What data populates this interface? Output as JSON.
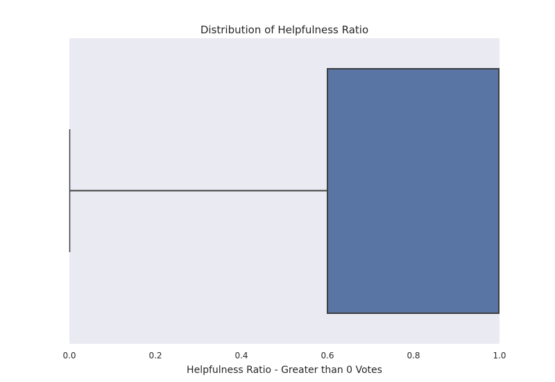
{
  "chart_data": {
    "type": "box",
    "orientation": "horizontal",
    "title": "Distribution of Helpfulness Ratio",
    "xlabel": "Helpfulness Ratio - Greater than 0 Votes",
    "ylabel": "",
    "xlim": [
      0.0,
      1.0
    ],
    "xticks": [
      "0.0",
      "0.2",
      "0.4",
      "0.6",
      "0.8",
      "1.0"
    ],
    "grid": false,
    "box": {
      "whisker_low": 0.0,
      "q1": 0.6,
      "median": 1.0,
      "q3": 1.0,
      "whisker_high": 1.0
    },
    "colors": {
      "background": "#eaeaf2",
      "box_fill": "#5975a4",
      "line": "#3f3f3f"
    }
  }
}
